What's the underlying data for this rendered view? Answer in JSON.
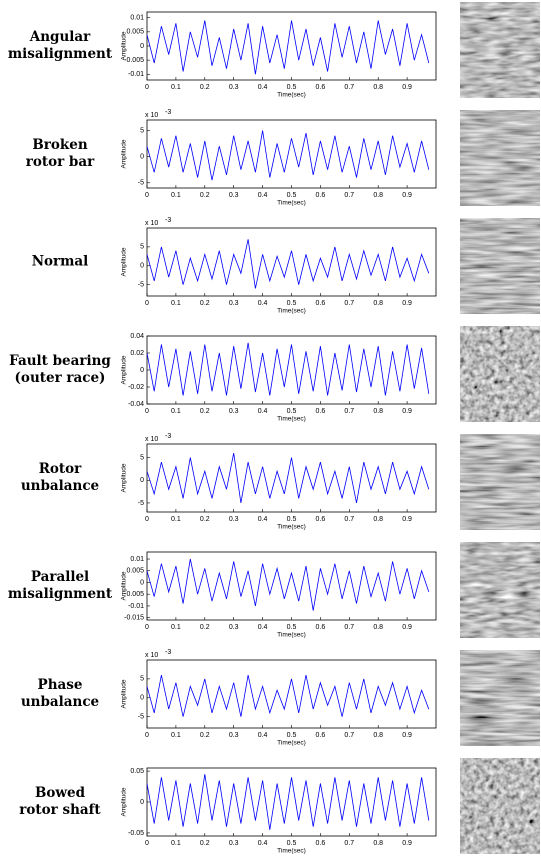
{
  "chart_data": [
    {
      "type": "line",
      "row_label": [
        "Angular",
        "misalignment"
      ],
      "xlabel": "Time(sec)",
      "ylabel": "Amplitude",
      "color": "#0000ff",
      "x": [
        0,
        0.025,
        0.05,
        0.075,
        0.1,
        0.125,
        0.15,
        0.175,
        0.2,
        0.225,
        0.25,
        0.275,
        0.3,
        0.325,
        0.35,
        0.375,
        0.4,
        0.425,
        0.45,
        0.475,
        0.5,
        0.525,
        0.55,
        0.575,
        0.6,
        0.625,
        0.65,
        0.675,
        0.7,
        0.725,
        0.75,
        0.775,
        0.8,
        0.825,
        0.85,
        0.875,
        0.9,
        0.925,
        0.95,
        0.975
      ],
      "values": [
        0.004,
        -0.006,
        0.007,
        -0.003,
        0.008,
        -0.009,
        0.005,
        -0.004,
        0.009,
        -0.007,
        0.003,
        -0.008,
        0.006,
        -0.005,
        0.008,
        -0.01,
        0.007,
        -0.006,
        0.004,
        -0.008,
        0.009,
        -0.005,
        0.006,
        -0.007,
        0.003,
        -0.009,
        0.008,
        -0.004,
        0.007,
        -0.006,
        0.005,
        -0.008,
        0.009,
        -0.003,
        0.006,
        -0.007,
        0.008,
        -0.005,
        0.004,
        -0.006
      ],
      "xlim": [
        0,
        1
      ],
      "ylim": [
        -0.012,
        0.012
      ],
      "xticks": [
        0,
        0.1,
        0.2,
        0.3,
        0.4,
        0.5,
        0.6,
        0.7,
        0.8,
        0.9
      ],
      "yticks": [
        -0.01,
        -0.005,
        0,
        0.005,
        0.01
      ]
    },
    {
      "type": "line",
      "row_label": [
        "Broken",
        "rotor bar"
      ],
      "xlabel": "Time(sec)",
      "ylabel": "Amplitude",
      "color": "#0000ff",
      "multiplier_base": "x 10",
      "multiplier_exp": "-3",
      "x": [
        0,
        0.025,
        0.05,
        0.075,
        0.1,
        0.125,
        0.15,
        0.175,
        0.2,
        0.225,
        0.25,
        0.275,
        0.3,
        0.325,
        0.35,
        0.375,
        0.4,
        0.425,
        0.45,
        0.475,
        0.5,
        0.525,
        0.55,
        0.575,
        0.6,
        0.625,
        0.65,
        0.675,
        0.7,
        0.725,
        0.75,
        0.775,
        0.8,
        0.825,
        0.85,
        0.875,
        0.9,
        0.925,
        0.95,
        0.975
      ],
      "values": [
        2,
        -3,
        3.5,
        -2,
        4,
        -3,
        2.5,
        -4,
        3,
        -4.5,
        2,
        -3.5,
        4,
        -2.5,
        3,
        -3,
        5,
        -4,
        2.5,
        -3,
        3.5,
        -2,
        4.5,
        -3.5,
        3,
        -2.5,
        4,
        -3,
        2,
        -4,
        3.5,
        -2.5,
        3,
        -3.5,
        4,
        -2,
        2.5,
        -3,
        3,
        -2.5
      ],
      "xlim": [
        0,
        1
      ],
      "ylim": [
        -6,
        7
      ],
      "xticks": [
        0,
        0.1,
        0.2,
        0.3,
        0.4,
        0.5,
        0.6,
        0.7,
        0.8,
        0.9
      ],
      "yticks": [
        -5,
        0,
        5
      ]
    },
    {
      "type": "line",
      "row_label": [
        "Normal"
      ],
      "xlabel": "Time(sec)",
      "ylabel": "Amplitude",
      "color": "#0000ff",
      "multiplier_base": "x 10",
      "multiplier_exp": "-3",
      "x": [
        0,
        0.025,
        0.05,
        0.075,
        0.1,
        0.125,
        0.15,
        0.175,
        0.2,
        0.225,
        0.25,
        0.275,
        0.3,
        0.325,
        0.35,
        0.375,
        0.4,
        0.425,
        0.45,
        0.475,
        0.5,
        0.525,
        0.55,
        0.575,
        0.6,
        0.625,
        0.65,
        0.675,
        0.7,
        0.725,
        0.75,
        0.775,
        0.8,
        0.825,
        0.85,
        0.875,
        0.9,
        0.925,
        0.95,
        0.975
      ],
      "values": [
        3,
        -4,
        5,
        -3,
        4,
        -5,
        2,
        -4,
        3,
        -3.5,
        4,
        -5,
        3,
        -2,
        7,
        -6,
        3,
        -4,
        2.5,
        -3,
        4,
        -5,
        3,
        -4,
        2,
        -3,
        5,
        -4,
        3,
        -3.5,
        4,
        -2.5,
        3,
        -4,
        5,
        -3,
        2,
        -4,
        3,
        -2
      ],
      "xlim": [
        0,
        1
      ],
      "ylim": [
        -8,
        10
      ],
      "xticks": [
        0,
        0.1,
        0.2,
        0.3,
        0.4,
        0.5,
        0.6,
        0.7,
        0.8,
        0.9
      ],
      "yticks": [
        -5,
        0,
        5
      ]
    },
    {
      "type": "line",
      "row_label": [
        "Fault bearing",
        "(outer race)"
      ],
      "xlabel": "Time(sec)",
      "ylabel": "Amplitude",
      "color": "#0000ff",
      "x": [
        0,
        0.025,
        0.05,
        0.075,
        0.1,
        0.125,
        0.15,
        0.175,
        0.2,
        0.225,
        0.25,
        0.275,
        0.3,
        0.325,
        0.35,
        0.375,
        0.4,
        0.425,
        0.45,
        0.475,
        0.5,
        0.525,
        0.55,
        0.575,
        0.6,
        0.625,
        0.65,
        0.675,
        0.7,
        0.725,
        0.75,
        0.775,
        0.8,
        0.825,
        0.85,
        0.875,
        0.9,
        0.925,
        0.95,
        0.975
      ],
      "values": [
        0.02,
        -0.025,
        0.03,
        -0.02,
        0.025,
        -0.03,
        0.022,
        -0.028,
        0.03,
        -0.025,
        0.02,
        -0.03,
        0.028,
        -0.022,
        0.032,
        -0.026,
        0.02,
        -0.03,
        0.025,
        -0.02,
        0.03,
        -0.028,
        0.022,
        -0.025,
        0.028,
        -0.03,
        0.02,
        -0.024,
        0.03,
        -0.026,
        0.025,
        -0.02,
        0.028,
        -0.03,
        0.022,
        -0.025,
        0.03,
        -0.022,
        0.026,
        -0.028
      ],
      "xlim": [
        0,
        1
      ],
      "ylim": [
        -0.04,
        0.04
      ],
      "xticks": [
        0,
        0.1,
        0.2,
        0.3,
        0.4,
        0.5,
        0.6,
        0.7,
        0.8,
        0.9
      ],
      "yticks": [
        -0.04,
        -0.02,
        0,
        0.02,
        0.04
      ]
    },
    {
      "type": "line",
      "row_label": [
        "Rotor",
        "unbalance"
      ],
      "xlabel": "Time(sec)",
      "ylabel": "Amplitude",
      "color": "#0000ff",
      "multiplier_base": "x 10",
      "multiplier_exp": "-3",
      "x": [
        0,
        0.025,
        0.05,
        0.075,
        0.1,
        0.125,
        0.15,
        0.175,
        0.2,
        0.225,
        0.25,
        0.275,
        0.3,
        0.325,
        0.35,
        0.375,
        0.4,
        0.425,
        0.45,
        0.475,
        0.5,
        0.525,
        0.55,
        0.575,
        0.6,
        0.625,
        0.65,
        0.675,
        0.7,
        0.725,
        0.75,
        0.775,
        0.8,
        0.825,
        0.85,
        0.875,
        0.9,
        0.925,
        0.95,
        0.975
      ],
      "values": [
        2,
        -3,
        4,
        -2,
        3,
        -4,
        5,
        -3,
        2,
        -4,
        3,
        -2,
        6,
        -5,
        4,
        -3,
        3,
        -4,
        2,
        -3,
        5,
        -4,
        3,
        -2,
        4,
        -3,
        2,
        -4,
        3,
        -5,
        4,
        -2,
        3,
        -3,
        4,
        -2,
        2,
        -3,
        3,
        -2
      ],
      "xlim": [
        0,
        1
      ],
      "ylim": [
        -7,
        8
      ],
      "xticks": [
        0,
        0.1,
        0.2,
        0.3,
        0.4,
        0.5,
        0.6,
        0.7,
        0.8,
        0.9
      ],
      "yticks": [
        -5,
        0,
        5
      ]
    },
    {
      "type": "line",
      "row_label": [
        "Parallel",
        "misalignment"
      ],
      "xlabel": "Time(sec)",
      "ylabel": "Amplitude",
      "color": "#0000ff",
      "x": [
        0,
        0.025,
        0.05,
        0.075,
        0.1,
        0.125,
        0.15,
        0.175,
        0.2,
        0.225,
        0.25,
        0.275,
        0.3,
        0.325,
        0.35,
        0.375,
        0.4,
        0.425,
        0.45,
        0.475,
        0.5,
        0.525,
        0.55,
        0.575,
        0.6,
        0.625,
        0.65,
        0.675,
        0.7,
        0.725,
        0.75,
        0.775,
        0.8,
        0.825,
        0.85,
        0.875,
        0.9,
        0.925,
        0.95,
        0.975
      ],
      "values": [
        0.005,
        -0.006,
        0.008,
        -0.004,
        0.007,
        -0.009,
        0.01,
        -0.005,
        0.006,
        -0.008,
        0.004,
        -0.007,
        0.009,
        -0.006,
        0.005,
        -0.01,
        0.008,
        -0.005,
        0.006,
        -0.007,
        0.004,
        -0.008,
        0.007,
        -0.012,
        0.006,
        -0.005,
        0.008,
        -0.007,
        0.005,
        -0.009,
        0.007,
        -0.006,
        0.004,
        -0.008,
        0.009,
        -0.005,
        0.006,
        -0.007,
        0.005,
        -0.004
      ],
      "xlim": [
        0,
        1
      ],
      "ylim": [
        -0.016,
        0.013
      ],
      "xticks": [
        0,
        0.1,
        0.2,
        0.3,
        0.4,
        0.5,
        0.6,
        0.7,
        0.8,
        0.9
      ],
      "yticks": [
        -0.015,
        -0.01,
        -0.005,
        0,
        0.005,
        0.01
      ]
    },
    {
      "type": "line",
      "row_label": [
        "Phase",
        "unbalance"
      ],
      "xlabel": "Time(sec)",
      "ylabel": "Amplitude",
      "color": "#0000ff",
      "multiplier_base": "x 10",
      "multiplier_exp": "-3",
      "x": [
        0,
        0.025,
        0.05,
        0.075,
        0.1,
        0.125,
        0.15,
        0.175,
        0.2,
        0.225,
        0.25,
        0.275,
        0.3,
        0.325,
        0.35,
        0.375,
        0.4,
        0.425,
        0.45,
        0.475,
        0.5,
        0.525,
        0.55,
        0.575,
        0.6,
        0.625,
        0.65,
        0.675,
        0.7,
        0.725,
        0.75,
        0.775,
        0.8,
        0.825,
        0.85,
        0.875,
        0.9,
        0.925,
        0.95,
        0.975
      ],
      "values": [
        3,
        -4,
        6,
        -3,
        4,
        -5,
        3,
        -2,
        5,
        -4,
        3,
        -3,
        4,
        -5,
        6,
        -3,
        3,
        -4,
        2,
        -3,
        5,
        -4,
        6,
        -3,
        4,
        -2,
        3,
        -5,
        4,
        -3,
        5,
        -4,
        3,
        -2,
        4,
        -3,
        3,
        -4,
        2,
        -3
      ],
      "xlim": [
        0,
        1
      ],
      "ylim": [
        -8,
        10
      ],
      "xticks": [
        0,
        0.1,
        0.2,
        0.3,
        0.4,
        0.5,
        0.6,
        0.7,
        0.8,
        0.9
      ],
      "yticks": [
        -5,
        0,
        5
      ]
    },
    {
      "type": "line",
      "row_label": [
        "Bowed",
        "rotor shaft"
      ],
      "xlabel": "Time(sec)",
      "ylabel": "Amplitude",
      "color": "#0000ff",
      "x": [
        0,
        0.025,
        0.05,
        0.075,
        0.1,
        0.125,
        0.15,
        0.175,
        0.2,
        0.225,
        0.25,
        0.275,
        0.3,
        0.325,
        0.35,
        0.375,
        0.4,
        0.425,
        0.45,
        0.475,
        0.5,
        0.525,
        0.55,
        0.575,
        0.6,
        0.625,
        0.65,
        0.675,
        0.7,
        0.725,
        0.75,
        0.775,
        0.8,
        0.825,
        0.85,
        0.875,
        0.9,
        0.925,
        0.95,
        0.975
      ],
      "values": [
        0.03,
        -0.035,
        0.04,
        -0.03,
        0.035,
        -0.04,
        0.03,
        -0.035,
        0.045,
        -0.03,
        0.035,
        -0.04,
        0.03,
        -0.035,
        0.04,
        -0.03,
        0.035,
        -0.045,
        0.03,
        -0.035,
        0.04,
        -0.03,
        0.035,
        -0.04,
        0.03,
        -0.035,
        0.04,
        -0.03,
        0.035,
        -0.04,
        0.03,
        -0.035,
        0.04,
        -0.03,
        0.035,
        -0.04,
        0.03,
        -0.035,
        0.04,
        -0.03
      ],
      "xlim": [
        0,
        1
      ],
      "ylim": [
        -0.055,
        0.055
      ],
      "xticks": [
        0,
        0.1,
        0.2,
        0.3,
        0.4,
        0.5,
        0.6,
        0.7,
        0.8,
        0.9
      ],
      "yticks": [
        -0.05,
        0,
        0.05
      ]
    }
  ]
}
